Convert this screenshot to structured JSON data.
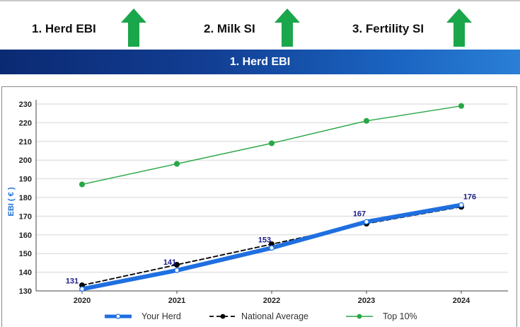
{
  "header": {
    "kpis": [
      {
        "label": "1. Herd EBI",
        "arrow": "up-arrow-icon"
      },
      {
        "label": "2. Milk SI",
        "arrow": "up-arrow-icon"
      },
      {
        "label": "3. Fertility SI",
        "arrow": "up-arrow-icon"
      }
    ],
    "arrow_color": "#1aa64a"
  },
  "banner": {
    "title": "1. Herd EBI"
  },
  "chart_data": {
    "type": "line",
    "categories": [
      "2020",
      "2021",
      "2022",
      "2023",
      "2024"
    ],
    "ylabel": "EBI ( € )",
    "xlabel": "",
    "ylim": [
      130,
      230
    ],
    "yticks": [
      130,
      140,
      150,
      160,
      170,
      180,
      190,
      200,
      210,
      220,
      230
    ],
    "grid": true,
    "series": [
      {
        "name": "Your Herd",
        "values": [
          131,
          141,
          153,
          167,
          176
        ],
        "color": "#1f6fe0",
        "labels": [
          "131",
          "141",
          "153",
          "167",
          "176"
        ]
      },
      {
        "name": "National Average",
        "values": [
          133,
          144,
          155,
          166,
          175
        ],
        "color": "#000000"
      },
      {
        "name": "Top 10%",
        "values": [
          187,
          198,
          209,
          221,
          229
        ],
        "color": "#27a745"
      }
    ],
    "legend": "bottom"
  }
}
